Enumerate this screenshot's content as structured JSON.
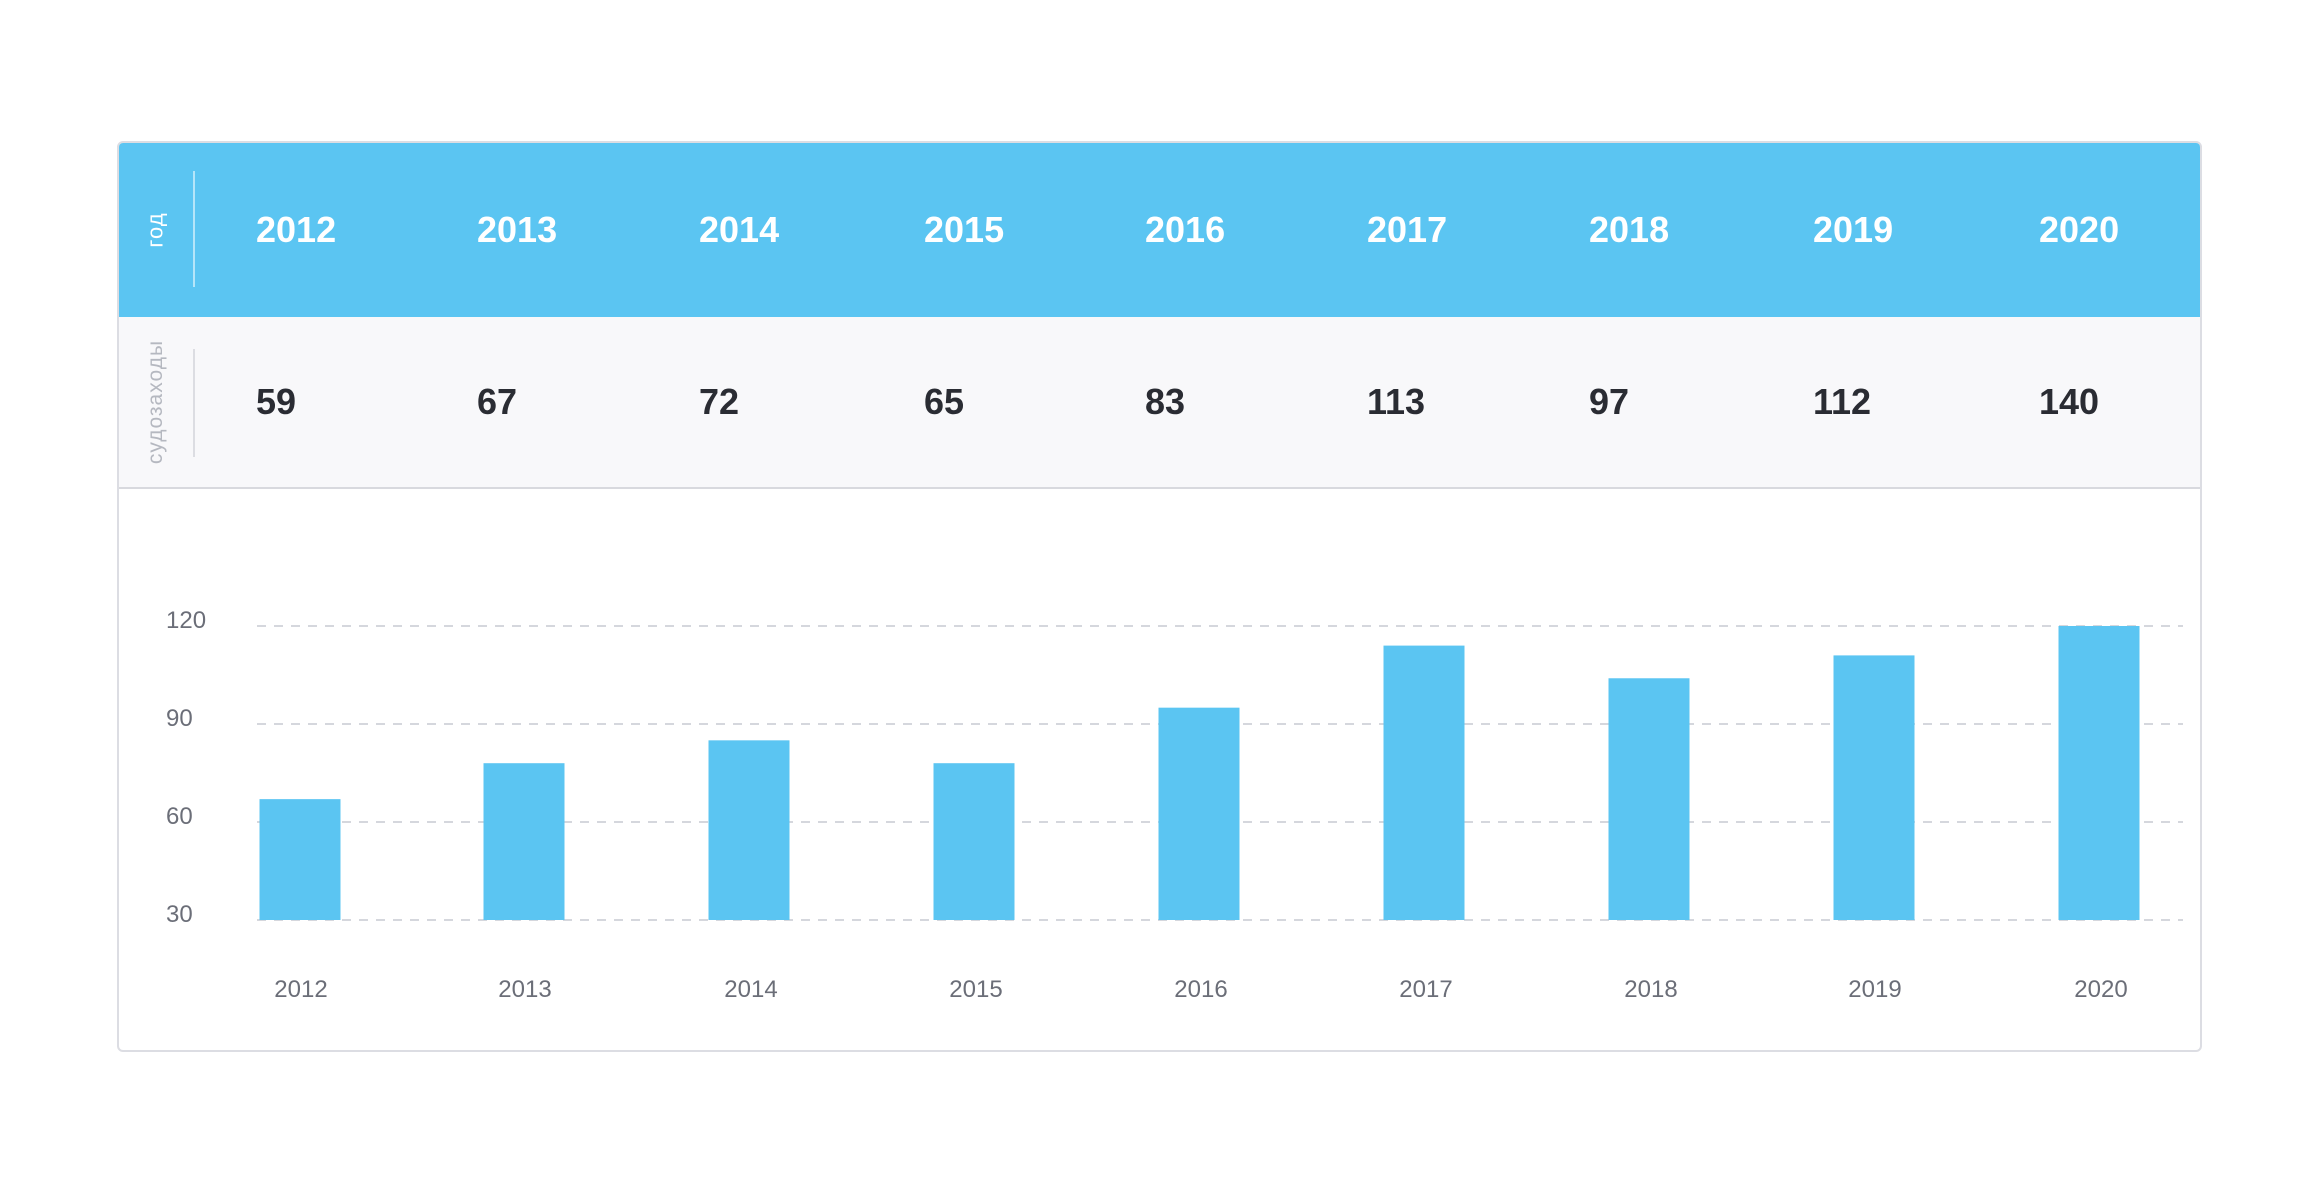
{
  "table": {
    "year_label": "год",
    "calls_label": "судозаходы",
    "years": [
      "2012",
      "2013",
      "2014",
      "2015",
      "2016",
      "2017",
      "2018",
      "2019",
      "2020"
    ],
    "calls": [
      "59",
      "67",
      "72",
      "65",
      "83",
      "113",
      "97",
      "112",
      "140"
    ]
  },
  "colors": {
    "accent": "#5bc5f2",
    "grid": "#d5d7dd",
    "tick": "#6b6e78"
  },
  "chart_data": {
    "type": "bar",
    "title": "",
    "xlabel": "",
    "ylabel": "",
    "categories": [
      "2012",
      "2013",
      "2014",
      "2015",
      "2016",
      "2017",
      "2018",
      "2019",
      "2020"
    ],
    "values": [
      67,
      78,
      85,
      78,
      95,
      114,
      104,
      111,
      120
    ],
    "ylim": [
      30,
      120
    ],
    "yticks": [
      120,
      90,
      60,
      30
    ],
    "grid": true
  }
}
